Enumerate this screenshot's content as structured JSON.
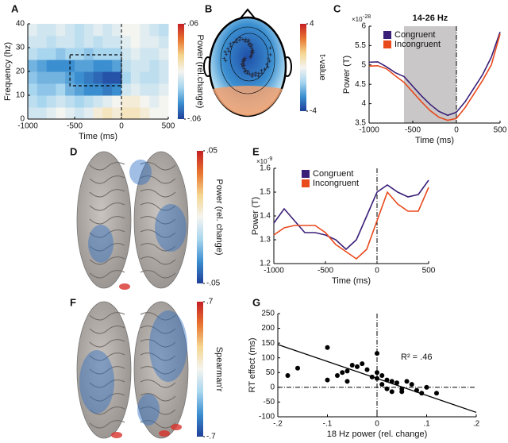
{
  "chart_data": [
    {
      "type": "heatmap",
      "panel": "A",
      "x_label": "Time (ms)",
      "y_label": "Frequency (hz)",
      "xlim": [
        -1000,
        500
      ],
      "xticks": [
        -1000,
        -500,
        0,
        500
      ],
      "ylim": [
        0,
        40
      ],
      "yticks": [
        0,
        10,
        20,
        30,
        40
      ],
      "x": [
        -950,
        -850,
        -750,
        -650,
        -550,
        -450,
        -350,
        -250,
        -150,
        -50,
        50,
        150,
        250,
        350,
        450
      ],
      "y": [
        2.5,
        7.5,
        12.5,
        17.5,
        22.5,
        27.5,
        32.5,
        37.5
      ],
      "z": [
        [
          -0.01,
          -0.01,
          -0.005,
          0,
          -0.005,
          -0.01,
          -0.005,
          0.005,
          0.01,
          0.005,
          0.01,
          0.01,
          0.005,
          0,
          0
        ],
        [
          -0.015,
          -0.02,
          -0.015,
          -0.01,
          -0.015,
          -0.02,
          -0.015,
          -0.01,
          -0.005,
          0,
          0.005,
          0.005,
          0,
          -0.005,
          0
        ],
        [
          -0.02,
          -0.025,
          -0.025,
          -0.02,
          -0.03,
          -0.035,
          -0.04,
          -0.04,
          -0.045,
          -0.04,
          -0.01,
          -0.005,
          -0.01,
          -0.01,
          -0.005
        ],
        [
          -0.025,
          -0.03,
          -0.03,
          -0.03,
          -0.035,
          -0.04,
          -0.045,
          -0.05,
          -0.055,
          -0.055,
          -0.02,
          -0.01,
          -0.015,
          -0.015,
          -0.01
        ],
        [
          -0.03,
          -0.035,
          -0.04,
          -0.04,
          -0.04,
          -0.035,
          -0.035,
          -0.04,
          -0.04,
          -0.035,
          -0.015,
          -0.01,
          -0.01,
          -0.015,
          -0.01
        ],
        [
          -0.015,
          -0.02,
          -0.02,
          -0.025,
          -0.02,
          -0.02,
          -0.025,
          -0.02,
          -0.02,
          -0.02,
          -0.01,
          -0.005,
          -0.01,
          -0.01,
          -0.005
        ],
        [
          -0.01,
          -0.01,
          -0.015,
          -0.01,
          -0.01,
          -0.015,
          -0.01,
          -0.015,
          -0.01,
          -0.01,
          -0.005,
          0,
          -0.005,
          -0.005,
          -0.01
        ],
        [
          -0.005,
          -0.01,
          -0.01,
          -0.005,
          -0.01,
          -0.015,
          -0.01,
          -0.005,
          -0.01,
          -0.005,
          0,
          0,
          -0.005,
          -0.01,
          -0.015
        ]
      ],
      "box": {
        "x": [
          -550,
          0
        ],
        "y": [
          14,
          27
        ]
      },
      "ref_x": 0,
      "colormap": [
        "#1f3f99",
        "#3b8fd0",
        "#a9d6ef",
        "#f4f4f0",
        "#f5d58e",
        "#e8742f",
        "#c51f24"
      ],
      "colorbar_label": "Power (rel.change)",
      "clim": [
        -0.06,
        0.06
      ],
      "cticks": [
        {
          "value": 0.06,
          "label": ".06"
        },
        {
          "value": -0.06,
          "label": "-.06"
        }
      ]
    },
    {
      "type": "topomap",
      "panel": "B",
      "colorbar_label": "t-value",
      "clim": [
        -4,
        4
      ],
      "cticks": [
        4,
        -4
      ]
    },
    {
      "type": "line",
      "panel": "C",
      "title": "14-26 Hz",
      "x_label": "Time (ms)",
      "y_label": "Power (T)",
      "y_scale_label": "×10",
      "y_scale_exponent": "-28",
      "xlim": [
        -1000,
        500
      ],
      "xticks": [
        -1000,
        -500,
        0,
        500
      ],
      "ylim": [
        3.5,
        6
      ],
      "yticks": [
        3.5,
        4,
        4.5,
        5,
        5.5,
        6
      ],
      "shade": [
        -600,
        0
      ],
      "ref_x": 0,
      "x": [
        -1000,
        -900,
        -800,
        -700,
        -600,
        -500,
        -400,
        -300,
        -200,
        -100,
        0,
        100,
        200,
        300,
        400,
        500
      ],
      "series": [
        {
          "name": "Congruent",
          "color": "#3a1f78",
          "values": [
            5.07,
            5.08,
            4.95,
            4.8,
            4.7,
            4.45,
            4.2,
            3.98,
            3.8,
            3.7,
            3.78,
            4.05,
            4.4,
            4.75,
            5.2,
            5.85
          ]
        },
        {
          "name": "Incongruent",
          "color": "#e8491d",
          "values": [
            4.97,
            4.98,
            4.9,
            4.72,
            4.55,
            4.3,
            4.05,
            3.82,
            3.65,
            3.57,
            3.62,
            3.9,
            4.25,
            4.6,
            5.0,
            5.8
          ]
        }
      ]
    },
    {
      "type": "surface",
      "panel": "D",
      "colorbar_label": "Power (rel. change)",
      "clim": [
        -0.05,
        0.05
      ],
      "cticks": [
        {
          "value": 0.05,
          "label": ".05"
        },
        {
          "value": -0.05,
          "label": "-.05"
        }
      ]
    },
    {
      "type": "line",
      "panel": "E",
      "x_label": "Time (ms)",
      "y_label": "Power (T)",
      "y_scale_label": "×10",
      "y_scale_exponent": "-9",
      "xlim": [
        -1000,
        500
      ],
      "xticks": [
        -1000,
        -500,
        0,
        500
      ],
      "ylim": [
        1.2,
        1.6
      ],
      "yticks": [
        1.2,
        1.3,
        1.4,
        1.5,
        1.6
      ],
      "ref_x": 0,
      "x": [
        -1000,
        -900,
        -800,
        -700,
        -600,
        -500,
        -400,
        -300,
        -200,
        -100,
        0,
        100,
        200,
        300,
        400,
        500
      ],
      "series": [
        {
          "name": "Congruent",
          "color": "#3a1f78",
          "values": [
            1.37,
            1.43,
            1.38,
            1.33,
            1.33,
            1.32,
            1.3,
            1.26,
            1.3,
            1.4,
            1.5,
            1.53,
            1.5,
            1.48,
            1.49,
            1.55
          ]
        },
        {
          "name": "Incongruent",
          "color": "#e8491d",
          "values": [
            1.32,
            1.35,
            1.36,
            1.36,
            1.36,
            1.33,
            1.28,
            1.25,
            1.22,
            1.26,
            1.38,
            1.5,
            1.45,
            1.42,
            1.42,
            1.52
          ]
        }
      ]
    },
    {
      "type": "surface",
      "panel": "F",
      "colorbar_label": "Spearman'r",
      "clim": [
        -0.7,
        0.7
      ],
      "cticks": [
        {
          "value": 0.7,
          "label": ".7"
        },
        {
          "value": -0.7,
          "label": "-.7"
        }
      ]
    },
    {
      "type": "scatter",
      "panel": "G",
      "x_label": "18 Hz power (rel. change)",
      "y_label": "RT effect (ms)",
      "annotation": "R² = .46",
      "xlim": [
        -0.2,
        0.2
      ],
      "xticks": [
        {
          "value": -0.2,
          "label": "-.2"
        },
        {
          "value": -0.1,
          "label": "-.1"
        },
        0,
        {
          "value": 0.1,
          "label": ".1"
        },
        {
          "value": 0.2,
          "label": ".2"
        }
      ],
      "ylim": [
        -100,
        250
      ],
      "yticks": [
        -100,
        -50,
        0,
        50,
        100,
        150,
        200,
        250
      ],
      "ref_x": 0,
      "ref_y": 0,
      "color": "#000000",
      "x": [
        -0.18,
        -0.16,
        -0.1,
        -0.1,
        -0.08,
        -0.07,
        -0.06,
        -0.05,
        -0.04,
        -0.03,
        -0.02,
        -0.01,
        0,
        0,
        0,
        0.01,
        0.01,
        0.02,
        0.02,
        0.03,
        0.03,
        0.04,
        0.05,
        0.06,
        0.07,
        0.08,
        0.09,
        0.1,
        0.12,
        -0.06,
        0.05
      ],
      "values": [
        40,
        65,
        135,
        25,
        40,
        50,
        55,
        75,
        70,
        80,
        60,
        35,
        50,
        115,
        30,
        40,
        10,
        25,
        -5,
        20,
        -15,
        15,
        -5,
        20,
        10,
        -10,
        -20,
        0,
        -20,
        20,
        -15
      ],
      "fit": {
        "x": [
          -0.2,
          0.2
        ],
        "values": [
          145,
          -85
        ]
      }
    }
  ]
}
